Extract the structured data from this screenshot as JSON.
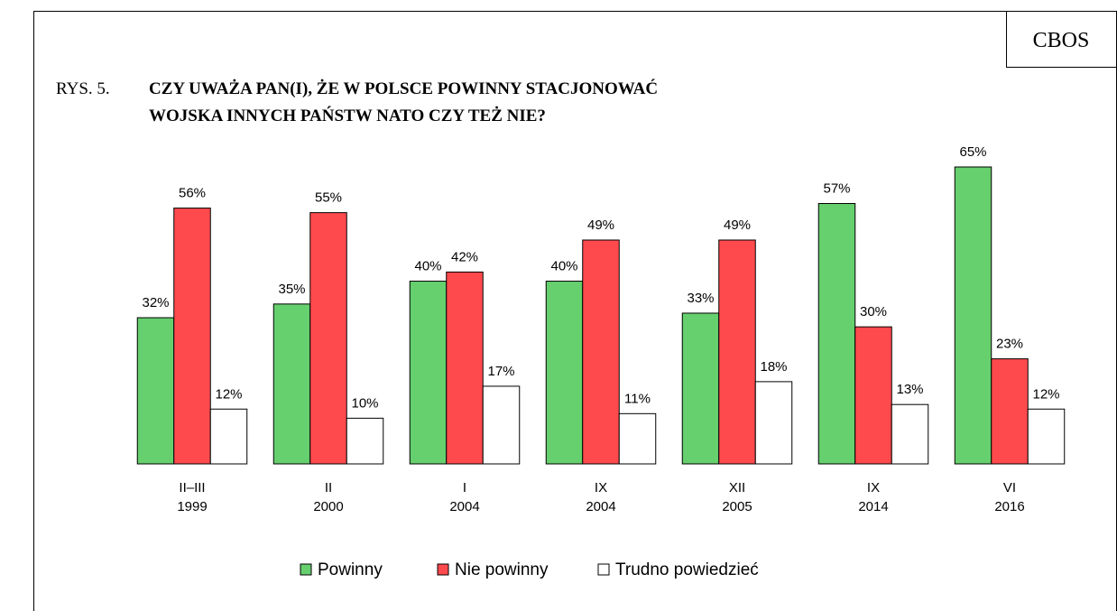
{
  "chart_data": {
    "type": "bar",
    "source": "CBOS",
    "figure_label": "RYS. 5.",
    "title": [
      "CZY UWAŻA PAN(I), ŻE W POLSCE POWINNY STACJONOWAĆ",
      "WOJSKA INNYCH PAŃSTW NATO CZY TEŻ NIE?"
    ],
    "categories": [
      [
        "II–III",
        "1999"
      ],
      [
        "II",
        "2000"
      ],
      [
        "I",
        "2004"
      ],
      [
        "IX",
        "2004"
      ],
      [
        "XII",
        "2005"
      ],
      [
        "IX",
        "2014"
      ],
      [
        "VI",
        "2016"
      ]
    ],
    "series": [
      {
        "name": "Powinny",
        "color": "#66cf6e",
        "values": [
          32,
          35,
          40,
          40,
          33,
          57,
          65
        ],
        "value_labels": [
          "32%",
          "35%",
          "40%",
          "40%",
          "33%",
          "57%",
          "65%"
        ]
      },
      {
        "name": "Nie powinny",
        "color": "#ff4a4d",
        "values": [
          56,
          55,
          42,
          49,
          49,
          30,
          23
        ],
        "value_labels": [
          "56%",
          "55%",
          "42%",
          "49%",
          "49%",
          "30%",
          "23%"
        ]
      },
      {
        "name": "Trudno powiedzieć",
        "color": "#ffffff",
        "values": [
          12,
          10,
          17,
          11,
          18,
          13,
          12
        ],
        "value_labels": [
          "12%",
          "10%",
          "17%",
          "11%",
          "18%",
          "13%",
          "12%"
        ]
      }
    ],
    "legend": "bottom"
  }
}
